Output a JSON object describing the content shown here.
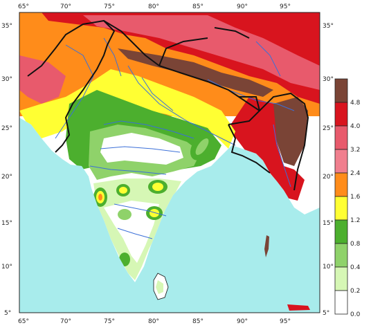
{
  "map": {
    "longitude_ticks": [
      "65°",
      "70°",
      "75°",
      "80°",
      "85°",
      "90°",
      "95°"
    ],
    "latitude_ticks": [
      "35°",
      "30°",
      "25°",
      "20°",
      "15°",
      "10°",
      "5°"
    ],
    "colors": {
      "ocean": "#a8ecec",
      "land_low": "#ffffff",
      "river": "#3b6fd8",
      "border": "#111111"
    }
  },
  "legend": {
    "bins": [
      {
        "label": "4.8",
        "color": "#7a4436"
      },
      {
        "label": "4.0",
        "color": "#d8141e"
      },
      {
        "label": "3.2",
        "color": "#e85a6c"
      },
      {
        "label": "2.4",
        "color": "#f07f8e"
      },
      {
        "label": "1.6",
        "color": "#ff8c1a"
      },
      {
        "label": "1.2",
        "color": "#ffff33"
      },
      {
        "label": "0.8",
        "color": "#4caf2e"
      },
      {
        "label": "0.4",
        "color": "#8fd26a"
      },
      {
        "label": "0.2",
        "color": "#d6f7b5"
      },
      {
        "label": "0.0",
        "color": "#ffffff"
      }
    ]
  }
}
